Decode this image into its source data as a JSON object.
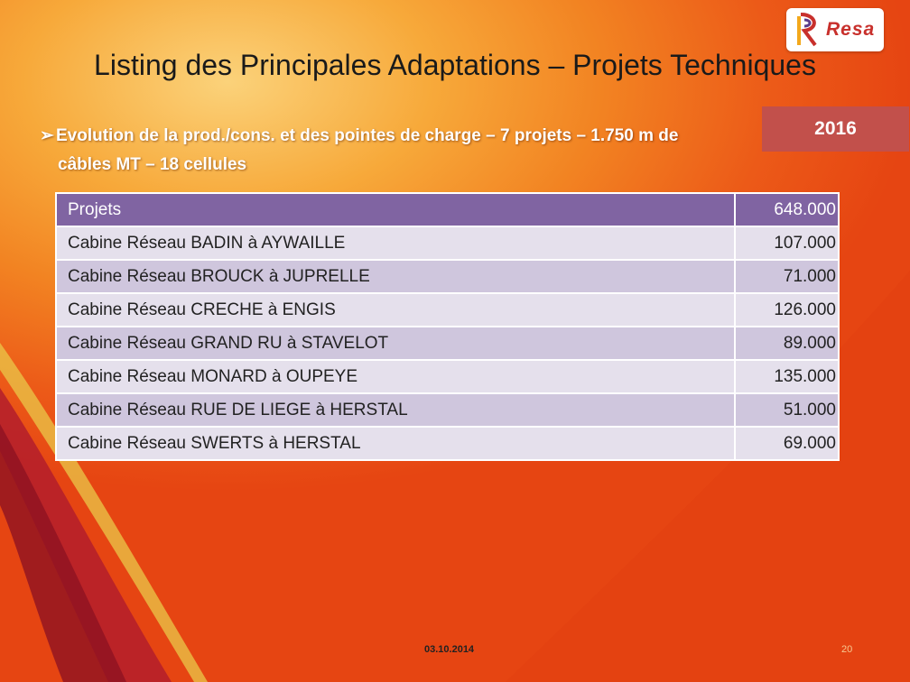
{
  "slide": {
    "title": "Listing des Principales Adaptations – Projets Techniques",
    "logo_text": "Resa",
    "bullet_line1": "Evolution de la prod./cons. et des pointes de charge – 7 projets – 1.750 m de",
    "bullet_line2": "câbles MT – 18 cellules",
    "year": "2016"
  },
  "table": {
    "header": {
      "label": "Projets",
      "value": "648.000"
    },
    "rows": [
      {
        "label": "Cabine Réseau BADIN à AYWAILLE",
        "value": "107.000"
      },
      {
        "label": "Cabine Réseau BROUCK à JUPRELLE",
        "value": "71.000"
      },
      {
        "label": "Cabine Réseau CRECHE à ENGIS",
        "value": "126.000"
      },
      {
        "label": "Cabine Réseau GRAND RU à STAVELOT",
        "value": "89.000"
      },
      {
        "label": "Cabine Réseau MONARD à OUPEYE",
        "value": "135.000"
      },
      {
        "label": "Cabine Réseau RUE DE LIEGE à HERSTAL",
        "value": "51.000"
      },
      {
        "label": "Cabine Réseau SWERTS à HERSTAL",
        "value": "69.000"
      }
    ]
  },
  "footer": {
    "date": "03.10.2014",
    "page": "20"
  },
  "colors": {
    "header_bg": "#8064a2",
    "row_light": "#e5e0ec",
    "row_dark": "#cfc6dd",
    "year_box": "#c2504b",
    "brand_red": "#c8302c"
  }
}
